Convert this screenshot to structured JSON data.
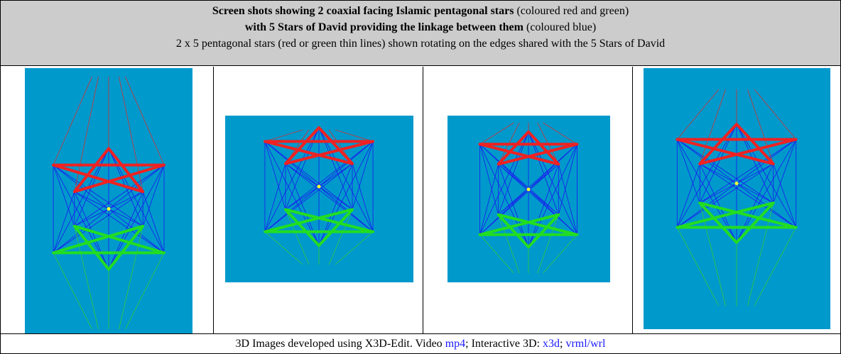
{
  "header": {
    "line1": {
      "bold": "Screen shots showing 2 coaxial facing Islamic pentagonal stars",
      "normal": "(coloured red and green)"
    },
    "line2": {
      "bold": "with 5 Stars of David providing the linkage between them",
      "normal": "(coloured blue)"
    },
    "line3": "2 x 5 pentagonal stars (red or green thin lines) shown rotating on the edges shared with the 5 Stars of David"
  },
  "footer": {
    "intro": "3D Images developed using X3D-Edit. Video",
    "link_mp4": "mp4",
    "mid": "; Interactive 3D:",
    "link_x3d": "x3d",
    "sep": ";",
    "link_wrl": "vrml/wrl"
  }
}
